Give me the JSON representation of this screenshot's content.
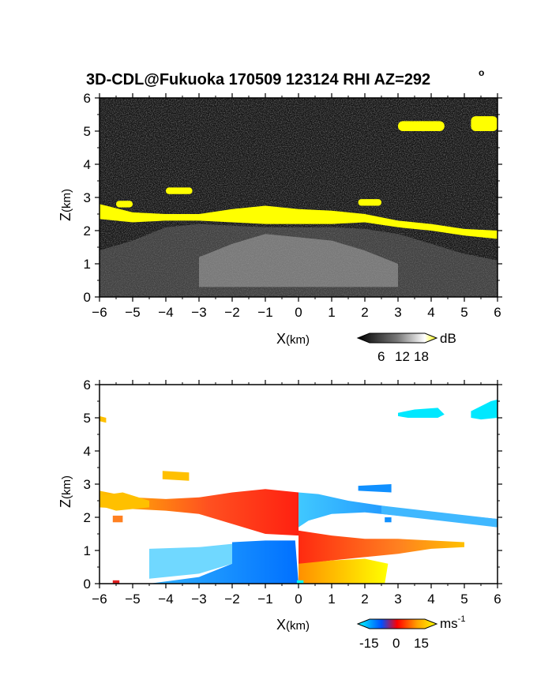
{
  "title": "3D-CDL@Fukuoka 170509 123124 RHI AZ=292",
  "title_superscript": "o",
  "chart_data": [
    {
      "type": "heatmap",
      "name": "backscatter",
      "xlabel_main": "X",
      "xlabel_unit": "(km)",
      "ylabel_main": "Z",
      "ylabel_unit": "(km)",
      "xlim": [
        -6,
        6
      ],
      "ylim": [
        0,
        6
      ],
      "x_ticks": [
        "-6",
        "-5",
        "-4",
        "-3",
        "-2",
        "-1",
        "0",
        "1",
        "2",
        "3",
        "4",
        "5",
        "6"
      ],
      "y_ticks": [
        "0",
        "1",
        "2",
        "3",
        "4",
        "5",
        "6"
      ],
      "colorbar": {
        "unit": "dB",
        "ticks": [
          "6",
          "12",
          "18"
        ],
        "colors": [
          "#000000",
          "#555555",
          "#aaaaaa",
          "#ffffff",
          "#ffff00"
        ]
      },
      "cloud_layer": [
        {
          "x": -6.0,
          "z_bottom": 2.35,
          "z_top": 2.8
        },
        {
          "x": -5.0,
          "z_bottom": 2.25,
          "z_top": 2.55
        },
        {
          "x": -4.0,
          "z_bottom": 2.3,
          "z_top": 2.5
        },
        {
          "x": -3.0,
          "z_bottom": 2.3,
          "z_top": 2.5
        },
        {
          "x": -2.0,
          "z_bottom": 2.25,
          "z_top": 2.65
        },
        {
          "x": -1.0,
          "z_bottom": 2.2,
          "z_top": 2.75
        },
        {
          "x": 0.0,
          "z_bottom": 2.2,
          "z_top": 2.65
        },
        {
          "x": 1.0,
          "z_bottom": 2.2,
          "z_top": 2.6
        },
        {
          "x": 2.0,
          "z_bottom": 2.25,
          "z_top": 2.5
        },
        {
          "x": 3.0,
          "z_bottom": 2.1,
          "z_top": 2.3
        },
        {
          "x": 4.0,
          "z_bottom": 2.0,
          "z_top": 2.2
        },
        {
          "x": 5.0,
          "z_bottom": 1.85,
          "z_top": 2.05
        },
        {
          "x": 6.0,
          "z_bottom": 1.75,
          "z_top": 2.0
        }
      ],
      "upper_cloud": [
        {
          "x_start": 3.0,
          "x_end": 4.4,
          "z_bottom": 5.0,
          "z_top": 5.3
        },
        {
          "x_start": 5.2,
          "x_end": 6.0,
          "z_bottom": 5.0,
          "z_top": 5.45
        }
      ]
    },
    {
      "type": "heatmap",
      "name": "doppler_velocity",
      "xlabel_main": "X",
      "xlabel_unit": "(km)",
      "ylabel_main": "Z",
      "ylabel_unit": "(km)",
      "xlim": [
        -6,
        6
      ],
      "ylim": [
        0,
        6
      ],
      "x_ticks": [
        "-6",
        "-5",
        "-4",
        "-3",
        "-2",
        "-1",
        "0",
        "1",
        "2",
        "3",
        "4",
        "5",
        "6"
      ],
      "y_ticks": [
        "0",
        "1",
        "2",
        "3",
        "4",
        "5",
        "6"
      ],
      "colorbar": {
        "unit": "ms",
        "unit_superscript": "-1",
        "ticks": [
          "-15",
          "0",
          "15"
        ],
        "colors": [
          "#00ffff",
          "#0050ff",
          "#ff0000",
          "#ffa000",
          "#ffff00"
        ]
      }
    }
  ]
}
